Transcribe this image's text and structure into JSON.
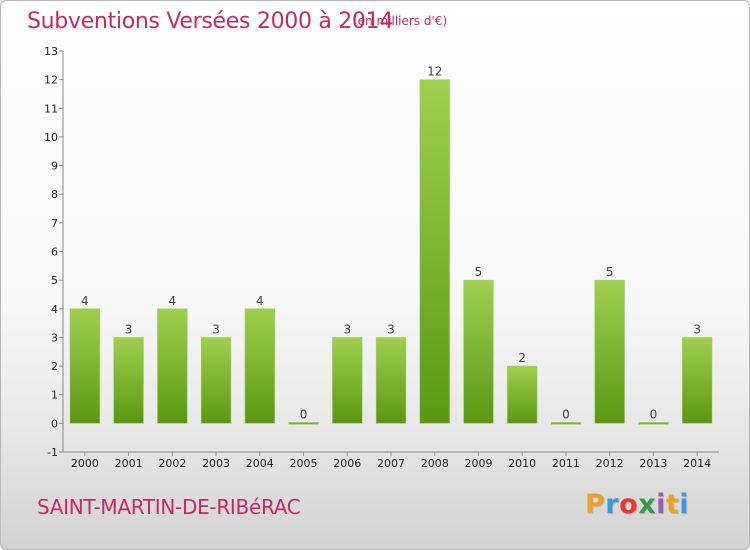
{
  "header": {
    "title": "Subventions Versées 2000 à 2014",
    "unit": "(en milliers d'€)"
  },
  "footer": {
    "commune": "SAINT-MARTIN-DE-RIBéRAC",
    "logo": [
      "P",
      "r",
      "o",
      "x",
      "i",
      "t",
      "i"
    ],
    "logo_colors": [
      "#f0a020",
      "#3a9ad9",
      "#e8382c",
      "#2e9e44",
      "#9b59b6",
      "#f0a020",
      "#3a9ad9"
    ]
  },
  "chart_data": {
    "type": "bar",
    "title": "Subventions Versées 2000 à 2014",
    "xlabel": "",
    "ylabel": "",
    "categories": [
      "2000",
      "2001",
      "2002",
      "2003",
      "2004",
      "2005",
      "2006",
      "2007",
      "2008",
      "2009",
      "2010",
      "2011",
      "2012",
      "2013",
      "2014"
    ],
    "values": [
      4,
      3,
      4,
      3,
      4,
      0,
      3,
      3,
      12,
      5,
      2,
      0,
      5,
      0,
      3
    ],
    "ylim": [
      -1,
      13
    ],
    "yticks": [
      -1,
      0,
      1,
      2,
      3,
      4,
      5,
      6,
      7,
      8,
      9,
      10,
      11,
      12,
      13
    ],
    "bar_color_light": "#9fd050",
    "bar_color_dark": "#5a9812",
    "grid": false,
    "legend": "none"
  }
}
